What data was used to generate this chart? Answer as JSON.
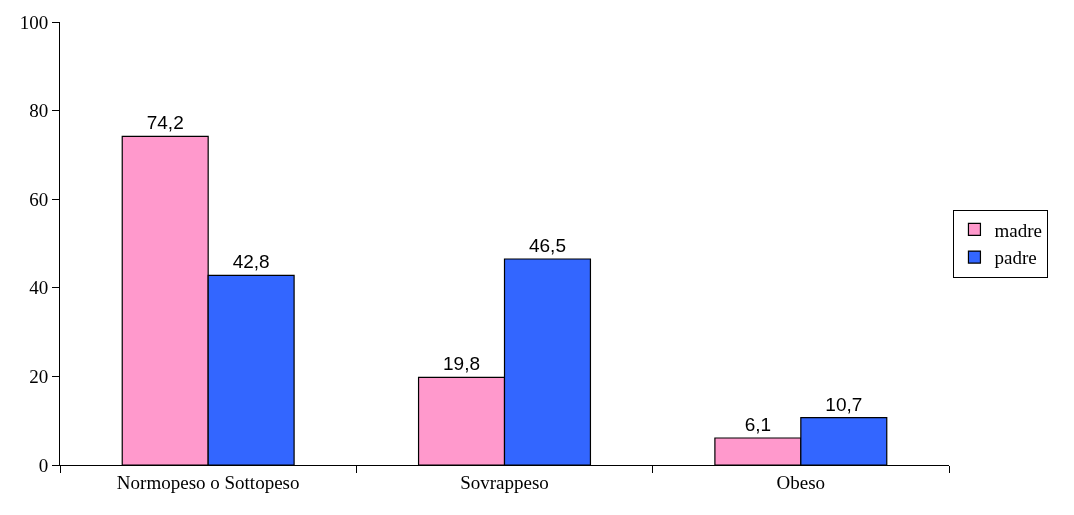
{
  "chart_data": {
    "type": "bar",
    "categories": [
      "Normopeso o Sottopeso",
      "Sovrappeso",
      "Obeso"
    ],
    "series": [
      {
        "name": "madre",
        "color": "#ff99cc",
        "values": [
          74.2,
          19.8,
          6.1
        ],
        "value_labels": [
          "74,2",
          "19,8",
          "6,1"
        ]
      },
      {
        "name": "padre",
        "color": "#3366ff",
        "values": [
          42.8,
          46.5,
          10.7
        ],
        "value_labels": [
          "42,8",
          "46,5",
          "10,7"
        ]
      }
    ],
    "ylim": [
      0,
      100
    ],
    "yticks": [
      0,
      20,
      40,
      60,
      80,
      100
    ],
    "legend": "right"
  }
}
